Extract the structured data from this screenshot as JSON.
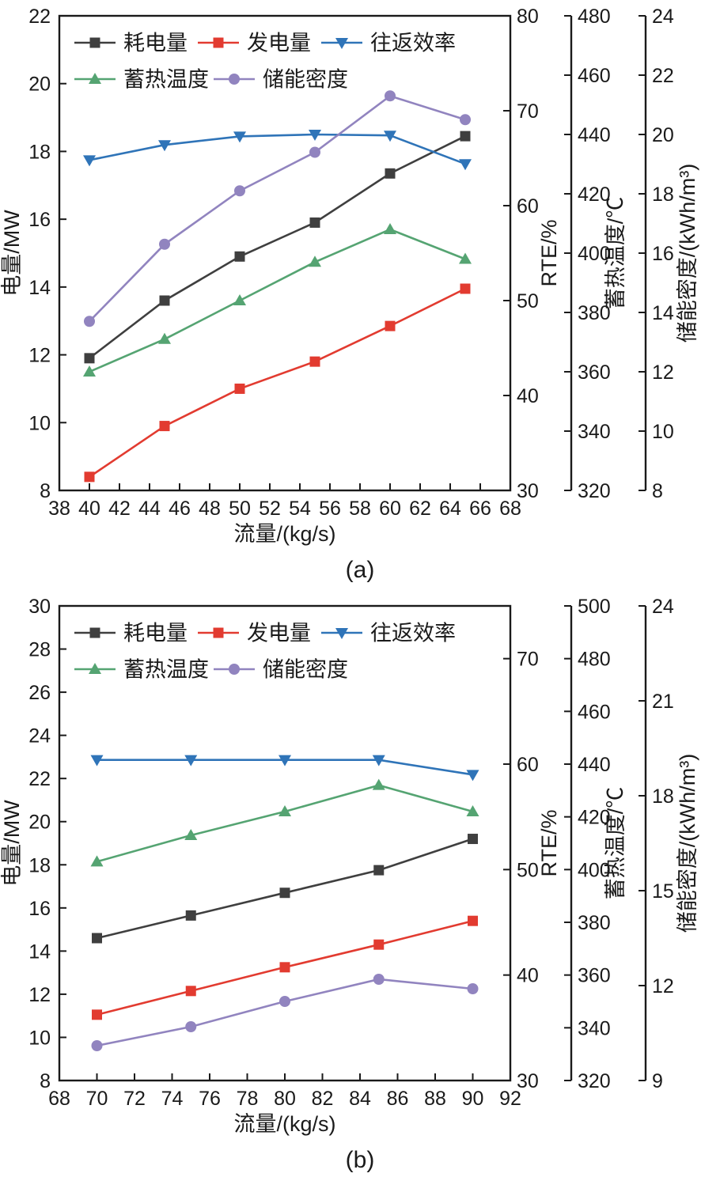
{
  "colors": {
    "consumption": "#3f3f3f",
    "generation": "#e23b30",
    "rte": "#2f74b8",
    "temperature": "#55a472",
    "density": "#9184bf",
    "axis": "#1a1a1a"
  },
  "chart_data": [
    {
      "type": "line",
      "caption": "(a)",
      "xlabel": "流量/(kg/s)",
      "x_range": [
        38,
        68
      ],
      "x_tick_step": 2,
      "axes": {
        "left": {
          "label": "电量/MW",
          "range": [
            8,
            22
          ],
          "tick_step": 2
        },
        "right1": {
          "label": "RTE/%",
          "range": [
            30,
            80
          ],
          "ticks": [
            30,
            40,
            50,
            60,
            70,
            80
          ]
        },
        "right2": {
          "label": "蓄热温度/℃",
          "range": [
            320,
            480
          ],
          "tick_step": 20
        },
        "right3": {
          "label": "储能密度/(kWh/m³)",
          "range": [
            8,
            24
          ],
          "tick_step": 2
        }
      },
      "x": [
        40,
        45,
        50,
        55,
        60,
        65
      ],
      "series": [
        {
          "name": "耗电量",
          "axis": "left",
          "marker": "square",
          "color_key": "consumption",
          "values": [
            11.9,
            13.6,
            14.9,
            15.9,
            17.35,
            18.45
          ]
        },
        {
          "name": "发电量",
          "axis": "left",
          "marker": "square",
          "color_key": "generation",
          "values": [
            8.4,
            9.9,
            11.0,
            11.8,
            12.85,
            13.95
          ]
        },
        {
          "name": "往返效率",
          "axis": "right1",
          "marker": "triangle-down",
          "color_key": "rte",
          "values": [
            64.8,
            66.4,
            67.3,
            67.5,
            67.4,
            64.4
          ]
        },
        {
          "name": "蓄热温度",
          "axis": "right2",
          "marker": "triangle-up",
          "color_key": "temperature",
          "values": [
            360,
            371,
            384,
            397,
            408,
            398
          ]
        },
        {
          "name": "储能密度",
          "axis": "right3",
          "marker": "circle",
          "color_key": "density",
          "values": [
            13.7,
            16.3,
            18.1,
            19.4,
            21.3,
            20.5
          ]
        }
      ]
    },
    {
      "type": "line",
      "caption": "(b)",
      "xlabel": "流量/(kg/s)",
      "x_range": [
        68,
        92
      ],
      "x_tick_step": 2,
      "axes": {
        "left": {
          "label": "电量/MW",
          "range": [
            8,
            30
          ],
          "tick_step": 2
        },
        "right1": {
          "label": "RTE/%",
          "range": [
            30,
            75
          ],
          "ticks": [
            30,
            40,
            50,
            60,
            70
          ]
        },
        "right2": {
          "label": "蓄热温度/℃",
          "range": [
            320,
            500
          ],
          "tick_step": 20
        },
        "right3": {
          "label": "储能密度/(kWh/m³)",
          "range": [
            9,
            24
          ],
          "tick_step": 3
        }
      },
      "x": [
        70,
        75,
        80,
        85,
        90
      ],
      "series": [
        {
          "name": "耗电量",
          "axis": "left",
          "marker": "square",
          "color_key": "consumption",
          "values": [
            14.6,
            15.65,
            16.7,
            17.75,
            19.2
          ]
        },
        {
          "name": "发电量",
          "axis": "left",
          "marker": "square",
          "color_key": "generation",
          "values": [
            11.05,
            12.15,
            13.25,
            14.3,
            15.4
          ]
        },
        {
          "name": "往返效率",
          "axis": "right1",
          "marker": "triangle-down",
          "color_key": "rte",
          "values": [
            60.4,
            60.4,
            60.4,
            60.4,
            59.0
          ]
        },
        {
          "name": "蓄热温度",
          "axis": "right2",
          "marker": "triangle-up",
          "color_key": "temperature",
          "values": [
            403,
            413,
            422,
            432,
            422
          ]
        },
        {
          "name": "储能密度",
          "axis": "right3",
          "marker": "circle",
          "color_key": "density",
          "values": [
            10.1,
            10.7,
            11.5,
            12.2,
            11.9
          ]
        }
      ]
    }
  ]
}
